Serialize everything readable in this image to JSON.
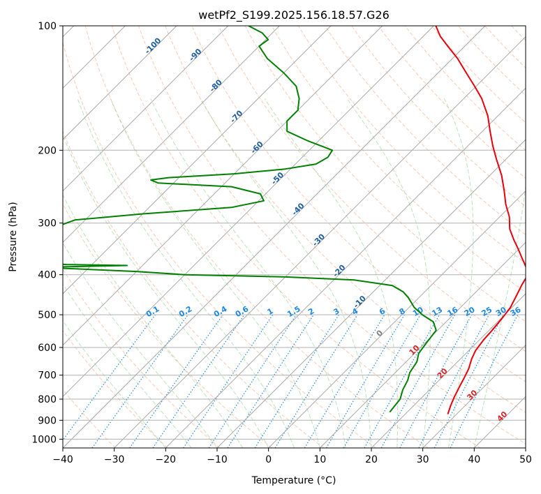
{
  "chart_data": {
    "type": "line",
    "title": "wetPf2_S199.2025.156.18.57.G26",
    "xlabel": "Temperature (°C)",
    "ylabel": "Pressure (hPa)",
    "xlim": [
      -40,
      50
    ],
    "ylim": [
      1050,
      100
    ],
    "yscale": "log",
    "grid": true,
    "x_ticks": [
      -40,
      -30,
      -20,
      -10,
      0,
      10,
      20,
      30,
      40,
      50
    ],
    "y_ticks": [
      100,
      200,
      300,
      400,
      500,
      600,
      700,
      800,
      900,
      1000
    ],
    "skew_reference_isotherms": [
      -100,
      -90,
      -80,
      -70,
      -60,
      -50,
      -40,
      -30,
      -20,
      -10,
      0,
      10,
      20,
      30,
      40
    ],
    "mixing_ratio_labels": [
      "0.1",
      "0.2",
      "0.4",
      "0.6",
      "1",
      "1.5",
      "2",
      "3",
      "4",
      "6",
      "8",
      "10",
      "13",
      "16",
      "20",
      "25",
      "30",
      "36"
    ],
    "colors": {
      "temperature": "#e8000b",
      "dewpoint": "#008000",
      "isotherm_label": "#1f5fa0",
      "warm_isotherm_label": "#d62728",
      "zero_isotherm_label": "#808080",
      "mixing_ratio": "#1e88e5",
      "dry_adiabat": "#f4a582",
      "moist_adiabat": "#8fd18f",
      "grid": "#b0b0b0"
    },
    "series": [
      {
        "key": "temperature",
        "color": "#e8000b",
        "points": [
          [
            870,
            28.3
          ],
          [
            830,
            27.2
          ],
          [
            790,
            26.2
          ],
          [
            750,
            25.3
          ],
          [
            710,
            24.4
          ],
          [
            675,
            23.5
          ],
          [
            640,
            22.2
          ],
          [
            610,
            21.3
          ],
          [
            575,
            20.8
          ],
          [
            545,
            20.6
          ],
          [
            510,
            20.2
          ],
          [
            480,
            19.7
          ],
          [
            450,
            18.6
          ],
          [
            425,
            17.6
          ],
          [
            405,
            16.9
          ],
          [
            385,
            15.1
          ],
          [
            365,
            12.4
          ],
          [
            345,
            9.6
          ],
          [
            330,
            7.3
          ],
          [
            310,
            4.3
          ],
          [
            290,
            1.9
          ],
          [
            270,
            -1.3
          ],
          [
            250,
            -4.3
          ],
          [
            230,
            -7.7
          ],
          [
            210,
            -11.9
          ],
          [
            195,
            -15.2
          ],
          [
            180,
            -18.5
          ],
          [
            165,
            -22.0
          ],
          [
            150,
            -26.5
          ],
          [
            140,
            -30.3
          ],
          [
            130,
            -34.5
          ],
          [
            120,
            -39.0
          ],
          [
            112,
            -43.3
          ],
          [
            106,
            -46.7
          ],
          [
            100,
            -49.6
          ]
        ]
      },
      {
        "key": "dewpoint",
        "color": "#008000",
        "points": [
          [
            860,
            16.6
          ],
          [
            800,
            16.1
          ],
          [
            760,
            14.8
          ],
          [
            720,
            13.9
          ],
          [
            690,
            12.8
          ],
          [
            650,
            12.1
          ],
          [
            620,
            10.8
          ],
          [
            580,
            10.2
          ],
          [
            545,
            9.7
          ],
          [
            520,
            7.5
          ],
          [
            500,
            4.0
          ],
          [
            480,
            1.0
          ],
          [
            455,
            -2.0
          ],
          [
            440,
            -4.2
          ],
          [
            425,
            -7.5
          ],
          [
            412,
            -16
          ],
          [
            405,
            -30
          ],
          [
            400,
            -50
          ],
          [
            393,
            -60
          ],
          [
            385,
            -77
          ],
          [
            383,
            -76
          ],
          [
            380,
            -63
          ],
          [
            378,
            -75
          ],
          [
            370,
            -85
          ],
          [
            340,
            -93
          ],
          [
            315,
            -86
          ],
          [
            295,
            -82
          ],
          [
            285,
            -70
          ],
          [
            275,
            -54
          ],
          [
            265,
            -49
          ],
          [
            255,
            -51
          ],
          [
            245,
            -58
          ],
          [
            240,
            -73
          ],
          [
            236,
            -75
          ],
          [
            233,
            -72
          ],
          [
            228,
            -60
          ],
          [
            222,
            -51
          ],
          [
            216,
            -46
          ],
          [
            208,
            -45
          ],
          [
            200,
            -45.5
          ],
          [
            190,
            -52
          ],
          [
            180,
            -58
          ],
          [
            170,
            -60
          ],
          [
            160,
            -60
          ],
          [
            150,
            -62
          ],
          [
            140,
            -65
          ],
          [
            130,
            -70
          ],
          [
            120,
            -76
          ],
          [
            112,
            -80
          ],
          [
            108,
            -79.5
          ],
          [
            104,
            -82
          ],
          [
            100,
            -86
          ]
        ]
      }
    ]
  }
}
